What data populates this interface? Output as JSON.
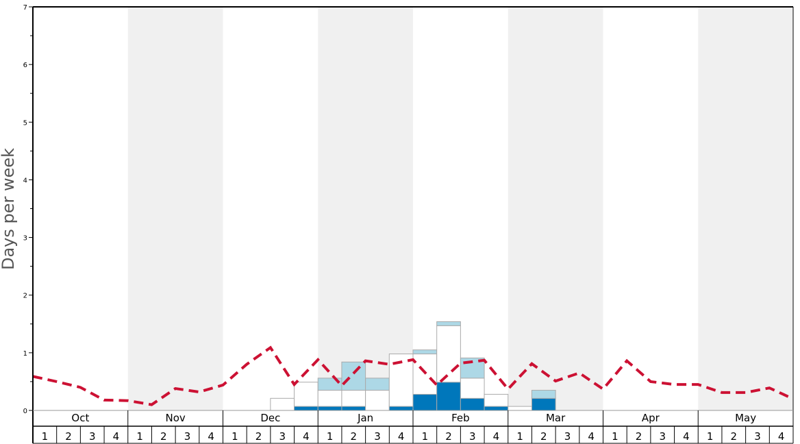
{
  "chart_data": {
    "type": "bar",
    "ylabel": "Days per week",
    "ylim": [
      0,
      7
    ],
    "y_ticks": [
      "0",
      "1",
      "2",
      "3",
      "4",
      "5",
      "6",
      "7"
    ],
    "months": [
      "Oct",
      "Nov",
      "Dec",
      "Jan",
      "Feb",
      "Mar",
      "Apr",
      "May"
    ],
    "week_labels": [
      "1",
      "2",
      "3",
      "4"
    ],
    "colors": {
      "dark_segment": "#0077bb",
      "white_segment": "#ffffff",
      "light_segment": "#add8e6",
      "average_line": "#cc1133",
      "shaded_band": "#f0f0f0"
    },
    "series": [
      {
        "values": [
          0,
          0,
          0,
          0,
          0,
          0,
          0,
          0,
          0,
          0,
          0,
          0.07,
          0.07,
          0.07,
          0,
          0.07,
          0.28,
          0.49,
          0.21,
          0.07,
          0,
          0.21,
          0,
          0,
          0,
          0,
          0,
          0,
          0,
          0,
          0,
          0
        ]
      },
      {
        "values": [
          0,
          0,
          0,
          0,
          0,
          0,
          0,
          0,
          0,
          0,
          0.21,
          0.42,
          0.28,
          0.28,
          0.35,
          0.91,
          0.7,
          0.98,
          0.35,
          0.21,
          0.07,
          0,
          0,
          0,
          0,
          0,
          0,
          0,
          0,
          0,
          0,
          0
        ]
      },
      {
        "values": [
          0,
          0,
          0,
          0,
          0,
          0,
          0,
          0,
          0,
          0,
          0,
          0,
          0.21,
          0.49,
          0.21,
          0,
          0.07,
          0.07,
          0.35,
          0,
          0,
          0.14,
          0,
          0,
          0,
          0,
          0,
          0,
          0,
          0,
          0,
          0
        ]
      }
    ],
    "average": [
      0.59,
      0.5,
      0.4,
      0.18,
      0.17,
      0.1,
      0.38,
      0.32,
      0.44,
      0.8,
      1.09,
      0.45,
      0.88,
      0.43,
      0.86,
      0.8,
      0.88,
      0.44,
      0.82,
      0.87,
      0.37,
      0.81,
      0.51,
      0.65,
      0.37,
      0.86,
      0.5,
      0.45,
      0.45,
      0.31,
      0.31,
      0.39,
      0.2
    ]
  }
}
